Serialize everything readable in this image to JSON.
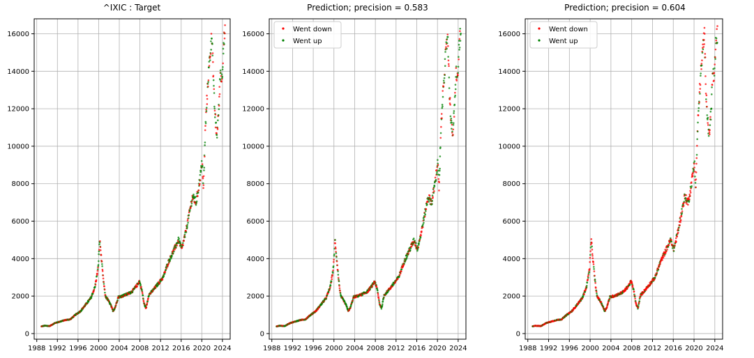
{
  "colors": {
    "went_down": "#ff0000",
    "went_up": "#008000",
    "target_line": "#006400",
    "grid": "#b0b0b0",
    "axis": "#000000",
    "legend_border": "#cccccc"
  },
  "chart_data": [
    {
      "type": "scatter",
      "title": "^IXIC : Target",
      "xlabel": "",
      "ylabel": "",
      "xlim": [
        1987.5,
        2025.5
      ],
      "ylim": [
        -300,
        16800
      ],
      "xticks": [
        1988,
        1992,
        1996,
        2000,
        2004,
        2008,
        2012,
        2016,
        2020,
        2024
      ],
      "yticks": [
        0,
        2000,
        4000,
        6000,
        8000,
        10000,
        12000,
        14000,
        16000
      ],
      "grid": true,
      "legend": null,
      "series_curve": [
        [
          1988.9,
          380
        ],
        [
          1989.5,
          420
        ],
        [
          1990.5,
          400
        ],
        [
          1991.5,
          560
        ],
        [
          1992.5,
          640
        ],
        [
          1993.5,
          720
        ],
        [
          1994.5,
          760
        ],
        [
          1995.5,
          1000
        ],
        [
          1996.5,
          1200
        ],
        [
          1997.5,
          1550
        ],
        [
          1998.5,
          1900
        ],
        [
          1999.3,
          2500
        ],
        [
          1999.9,
          3500
        ],
        [
          2000.2,
          5000
        ],
        [
          2000.6,
          3800
        ],
        [
          2000.9,
          2900
        ],
        [
          2001.3,
          2000
        ],
        [
          2001.8,
          1800
        ],
        [
          2002.3,
          1550
        ],
        [
          2002.8,
          1200
        ],
        [
          2003.2,
          1400
        ],
        [
          2003.8,
          1950
        ],
        [
          2004.5,
          2000
        ],
        [
          2005.5,
          2100
        ],
        [
          2006.5,
          2250
        ],
        [
          2007.5,
          2600
        ],
        [
          2007.9,
          2800
        ],
        [
          2008.4,
          2300
        ],
        [
          2008.8,
          1600
        ],
        [
          2009.2,
          1350
        ],
        [
          2009.7,
          2050
        ],
        [
          2010.5,
          2300
        ],
        [
          2011.5,
          2650
        ],
        [
          2012.5,
          3000
        ],
        [
          2013.5,
          3800
        ],
        [
          2014.5,
          4400
        ],
        [
          2015.5,
          5000
        ],
        [
          2016.1,
          4500
        ],
        [
          2016.8,
          5300
        ],
        [
          2017.5,
          6300
        ],
        [
          2018.2,
          7300
        ],
        [
          2018.9,
          7000
        ],
        [
          2019.5,
          8000
        ],
        [
          2020.1,
          9200
        ],
        [
          2020.3,
          7600
        ],
        [
          2020.7,
          11000
        ],
        [
          2021.2,
          13500
        ],
        [
          2021.8,
          15500
        ],
        [
          2022.0,
          16000
        ],
        [
          2022.3,
          13000
        ],
        [
          2022.6,
          11500
        ],
        [
          2022.9,
          10500
        ],
        [
          2023.3,
          12000
        ],
        [
          2023.6,
          14000
        ],
        [
          2023.9,
          13500
        ],
        [
          2024.2,
          15500
        ],
        [
          2024.5,
          16000
        ]
      ],
      "up_ratio": 0.54
    },
    {
      "type": "scatter",
      "title": "Prediction; precision = 0.583",
      "xlabel": "",
      "ylabel": "",
      "xlim": [
        1987.5,
        2025.5
      ],
      "ylim": [
        -300,
        16800
      ],
      "xticks": [
        1988,
        1992,
        1996,
        2000,
        2004,
        2008,
        2012,
        2016,
        2020,
        2024
      ],
      "yticks": [
        0,
        2000,
        4000,
        6000,
        8000,
        10000,
        12000,
        14000,
        16000
      ],
      "grid": true,
      "legend": {
        "placement": "upper-left",
        "entries": [
          {
            "label": "Went down",
            "color_key": "went_down"
          },
          {
            "label": "Went up",
            "color_key": "went_up"
          }
        ]
      },
      "up_ratio": 0.6
    },
    {
      "type": "scatter",
      "title": "Prediction; precision = 0.604",
      "xlabel": "",
      "ylabel": "",
      "xlim": [
        1987.5,
        2025.5
      ],
      "ylim": [
        -300,
        16800
      ],
      "xticks": [
        1988,
        1992,
        1996,
        2000,
        2004,
        2008,
        2012,
        2016,
        2020,
        2024
      ],
      "yticks": [
        0,
        2000,
        4000,
        6000,
        8000,
        10000,
        12000,
        14000,
        16000
      ],
      "grid": true,
      "legend": {
        "placement": "upper-left",
        "entries": [
          {
            "label": "Went down",
            "color_key": "went_down"
          },
          {
            "label": "Went up",
            "color_key": "went_up"
          }
        ]
      },
      "up_ratio": 0.35
    }
  ]
}
